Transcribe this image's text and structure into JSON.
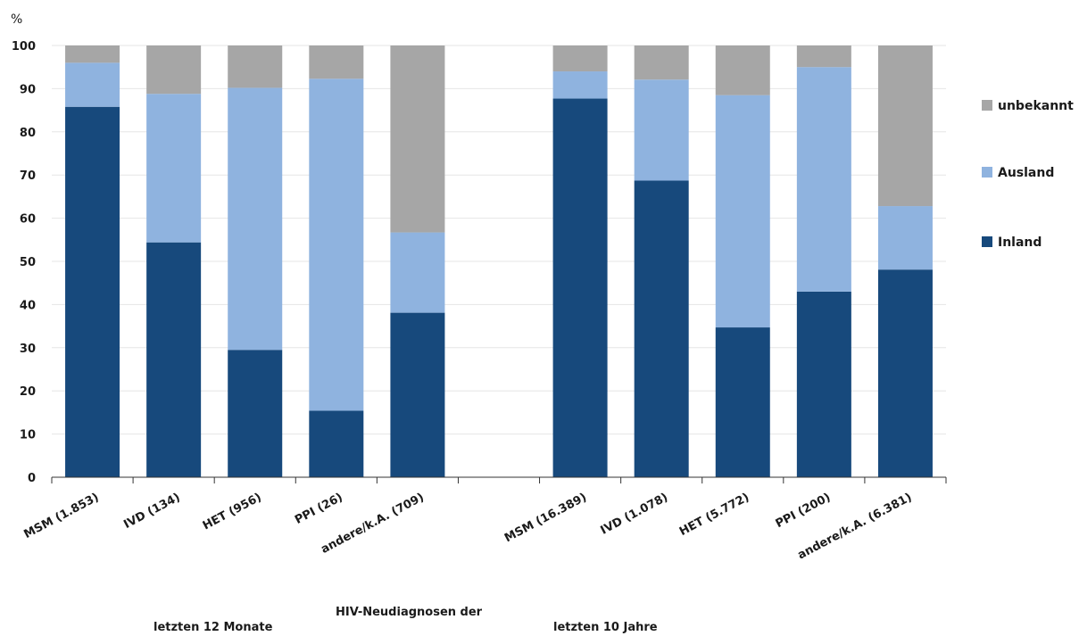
{
  "chart_data": {
    "type": "bar",
    "stacked": true,
    "ylabel": "%",
    "ylim": [
      0,
      100
    ],
    "yticks": [
      0,
      10,
      20,
      30,
      40,
      50,
      60,
      70,
      80,
      90,
      100
    ],
    "grid": true,
    "legend_position": "right",
    "categories": [
      "MSM (1.853)",
      "IVD (134)",
      "HET (956)",
      "PPI (26)",
      "andere/k.A. (709)",
      "MSM (16.389)",
      "IVD (1.078)",
      "HET (5.772)",
      "PPI (200)",
      "andere/k.A. (6.381)"
    ],
    "series": [
      {
        "name": "Inland",
        "color": "#17497c",
        "values": [
          85.8,
          54.4,
          29.5,
          15.4,
          38.1,
          87.7,
          68.7,
          34.7,
          43.0,
          48.1
        ]
      },
      {
        "name": "Ausland",
        "color": "#8fb3df",
        "values": [
          10.2,
          34.4,
          60.7,
          76.9,
          18.6,
          6.3,
          23.4,
          53.8,
          52.0,
          14.7
        ]
      },
      {
        "name": "unbekannt",
        "color": "#a6a6a6",
        "values": [
          4.0,
          11.2,
          9.8,
          7.7,
          43.3,
          6.0,
          7.9,
          11.5,
          5.0,
          37.2
        ]
      }
    ],
    "legend_order": [
      "unbekannt",
      "Ausland",
      "Inland"
    ],
    "group_labels": {
      "left": "letzten 12 Monate",
      "center": "HIV-Neudiagnosen der",
      "right": "letzten 10 Jahre"
    }
  }
}
